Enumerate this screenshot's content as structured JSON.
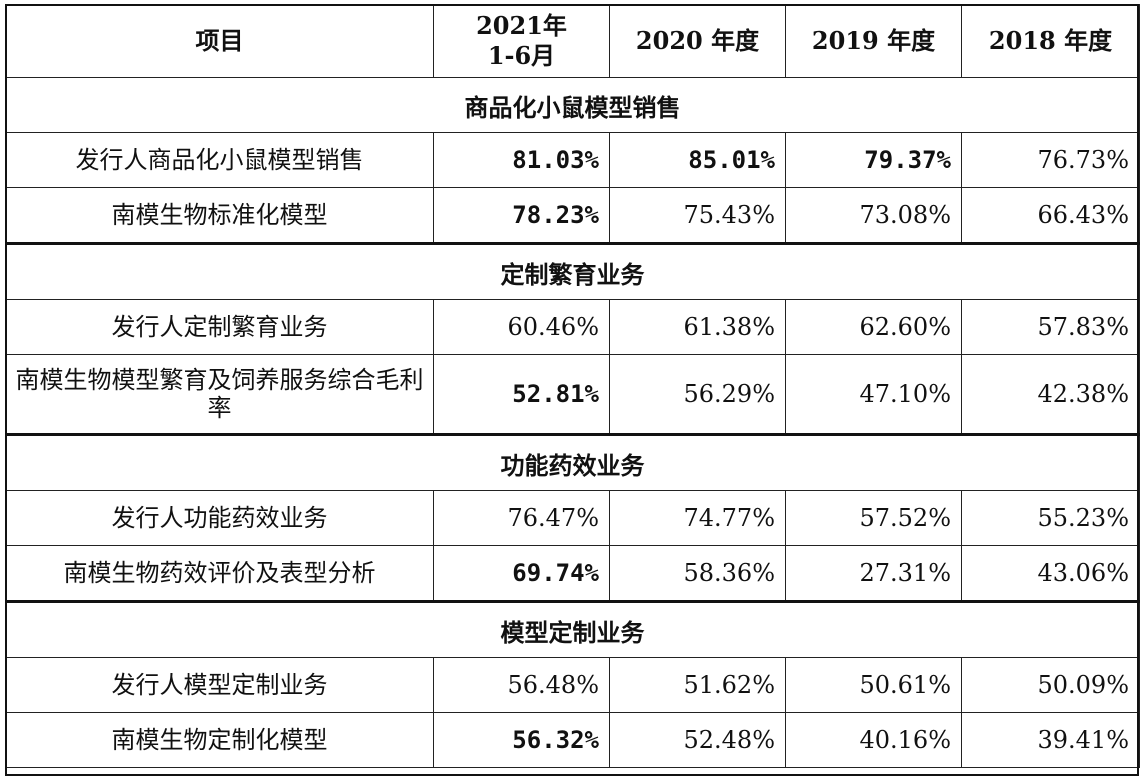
{
  "header": {
    "item": "项目",
    "y2021": "2021年\n1-6月",
    "y2020": "2020 年度",
    "y2019": "2019 年度",
    "y2018": "2018 年度"
  },
  "sections": [
    {
      "title": "商品化小鼠模型销售",
      "rows": [
        {
          "label": "发行人商品化小鼠模型销售",
          "v": [
            "81.03%",
            "85.01%",
            "79.37%",
            "76.73%"
          ],
          "bold": [
            true,
            true,
            true,
            false
          ]
        },
        {
          "label": "南模生物标准化模型",
          "v": [
            "78.23%",
            "75.43%",
            "73.08%",
            "66.43%"
          ],
          "bold": [
            true,
            false,
            false,
            false
          ]
        }
      ]
    },
    {
      "title": "定制繁育业务",
      "rows": [
        {
          "label": "发行人定制繁育业务",
          "v": [
            "60.46%",
            "61.38%",
            "62.60%",
            "57.83%"
          ],
          "bold": [
            false,
            false,
            false,
            false
          ]
        },
        {
          "label": "南模生物模型繁育及饲养服务综合毛利率",
          "v": [
            "52.81%",
            "56.29%",
            "47.10%",
            "42.38%"
          ],
          "bold": [
            true,
            false,
            false,
            false
          ]
        }
      ]
    },
    {
      "title": "功能药效业务",
      "rows": [
        {
          "label": "发行人功能药效业务",
          "v": [
            "76.47%",
            "74.77%",
            "57.52%",
            "55.23%"
          ],
          "bold": [
            false,
            false,
            false,
            false
          ]
        },
        {
          "label": "南模生物药效评价及表型分析",
          "v": [
            "69.74%",
            "58.36%",
            "27.31%",
            "43.06%"
          ],
          "bold": [
            true,
            false,
            false,
            false
          ]
        }
      ]
    },
    {
      "title": "模型定制业务",
      "rows": [
        {
          "label": "发行人模型定制业务",
          "v": [
            "56.48%",
            "51.62%",
            "50.61%",
            "50.09%"
          ],
          "bold": [
            false,
            false,
            false,
            false
          ]
        },
        {
          "label": "南模生物定制化模型",
          "v": [
            "56.32%",
            "52.48%",
            "40.16%",
            "39.41%"
          ],
          "bold": [
            true,
            false,
            false,
            false
          ]
        }
      ]
    }
  ]
}
